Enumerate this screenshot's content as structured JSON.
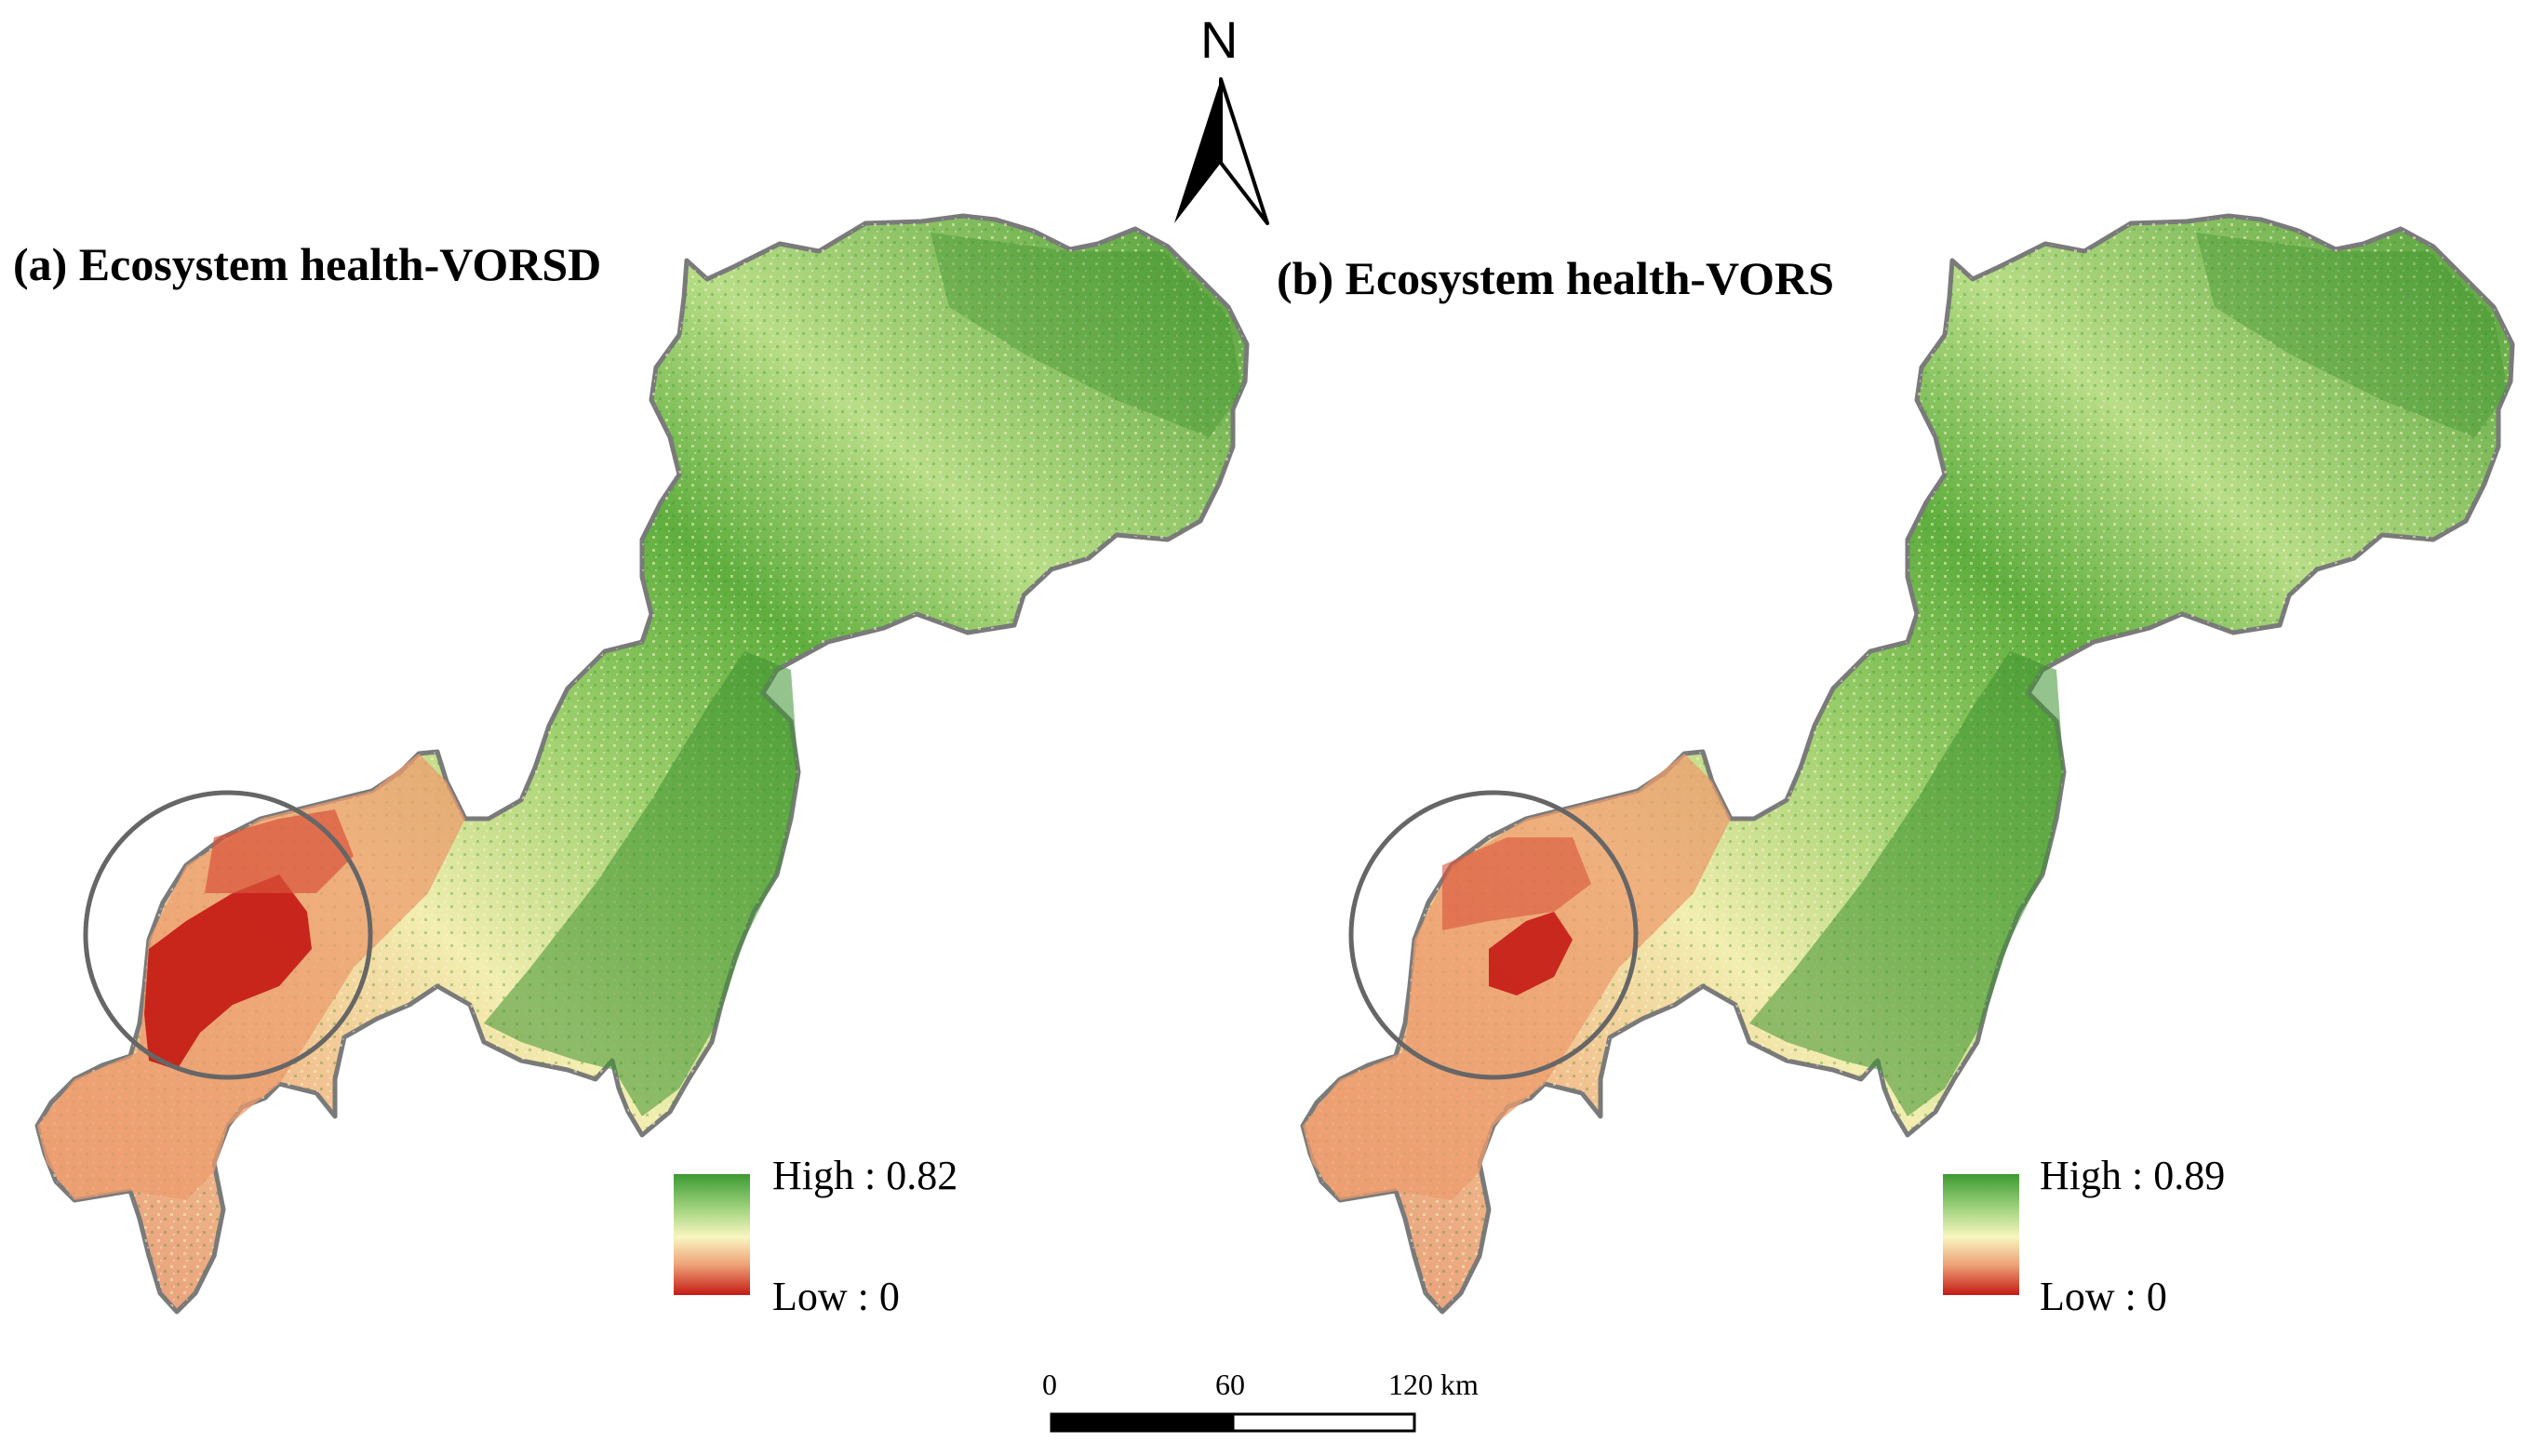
{
  "panels": [
    {
      "title": "(a) Ecosystem health-VORSD",
      "legend": {
        "high_label": "High : 0.82",
        "low_label": "Low : 0"
      }
    },
    {
      "title": "(b) Ecosystem health-VORS",
      "legend": {
        "high_label": "High : 0.89",
        "low_label": "Low : 0"
      }
    }
  ],
  "north_arrow": {
    "label": "N"
  },
  "scale_bar": {
    "ticks": [
      "0",
      "60",
      "120 km"
    ]
  },
  "colors": {
    "high": "#2e8b2a",
    "mid_high": "#7cc35a",
    "mid": "#f4f0b4",
    "mid_low": "#f0a070",
    "low": "#c41a14",
    "outline": "#7a7a7a",
    "circle": "#666666"
  }
}
